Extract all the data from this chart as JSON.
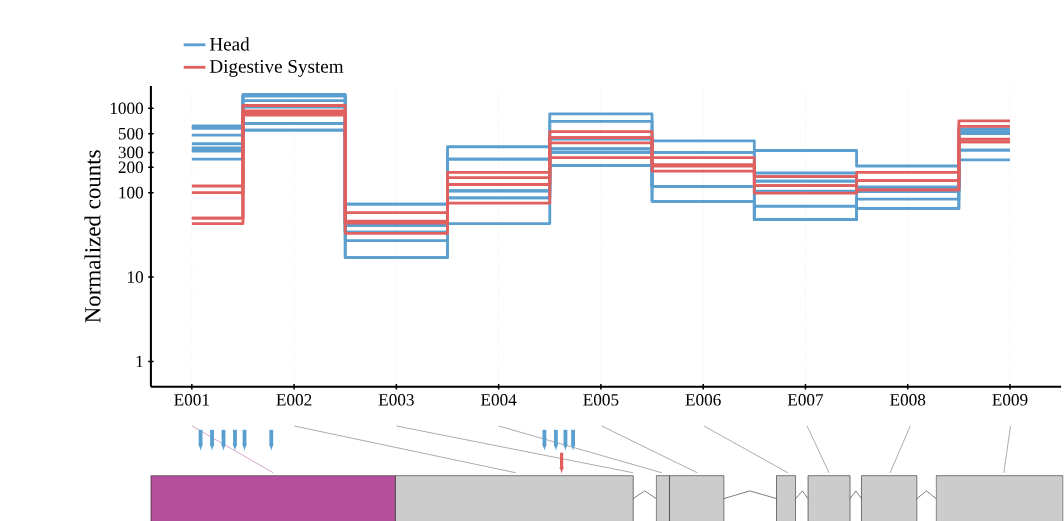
{
  "chart_data": {
    "type": "step",
    "ylabel": "Normalized counts",
    "log": true,
    "grid": "x",
    "legend": "top left",
    "line_style": "solid",
    "categories": [
      "E001",
      "E002",
      "E003",
      "E004",
      "E005",
      "E006",
      "E007",
      "E008",
      "E009"
    ],
    "ylim": [
      0.5,
      1840
    ],
    "yticks": [
      1,
      10,
      100,
      200,
      300,
      500,
      1000
    ],
    "series": [
      {
        "name": "Head",
        "color": "#5b9fd0",
        "values": [
          620,
          1460,
          73,
          350,
          860,
          410,
          316,
          207,
          570
        ]
      },
      {
        "color": "#5b9fd0",
        "values": [
          590,
          1400,
          73,
          250,
          700,
          300,
          171,
          116,
          530
        ]
      },
      {
        "color": "#5b9fd0",
        "values": [
          580,
          1400,
          41,
          250,
          430,
          300,
          137,
          116,
          530
        ]
      },
      {
        "color": "#5b9fd0",
        "values": [
          480,
          1230,
          41,
          105,
          330,
          118,
          137,
          104,
          500
        ]
      },
      {
        "color": "#5b9fd0",
        "values": [
          380,
          1030,
          34,
          105,
          330,
          118,
          104,
          104,
          500
        ]
      },
      {
        "color": "#5b9fd0",
        "values": [
          340,
          660,
          34,
          105,
          330,
          118,
          69,
          104,
          500
        ]
      },
      {
        "color": "#5b9fd0",
        "values": [
          320,
          660,
          27,
          87,
          300,
          118,
          48,
          84,
          320
        ]
      },
      {
        "color": "#5b9fd0",
        "values": [
          310,
          550,
          17,
          87,
          300,
          79,
          48,
          65,
          320
        ]
      },
      {
        "color": "#5b9fd0",
        "values": [
          250,
          550,
          17,
          43,
          210,
          79,
          48,
          65,
          245
        ]
      },
      {
        "name": "Digestive System",
        "color": "#e0605f",
        "values": [
          120,
          1080,
          58,
          174,
          530,
          260,
          155,
          174,
          710
        ]
      },
      {
        "color": "#e0605f",
        "values": [
          100,
          930,
          46,
          151,
          450,
          214,
          155,
          139,
          610
        ]
      },
      {
        "color": "#e0605f",
        "values": [
          50,
          910,
          44,
          125,
          450,
          214,
          121,
          139,
          430
        ]
      },
      {
        "color": "#e0605f",
        "values": [
          50,
          880,
          44,
          125,
          390,
          207,
          121,
          108,
          400
        ]
      },
      {
        "color": "#e0605f",
        "values": [
          43,
          830,
          33,
          75,
          260,
          180,
          99,
          108,
          400
        ]
      }
    ]
  }
}
